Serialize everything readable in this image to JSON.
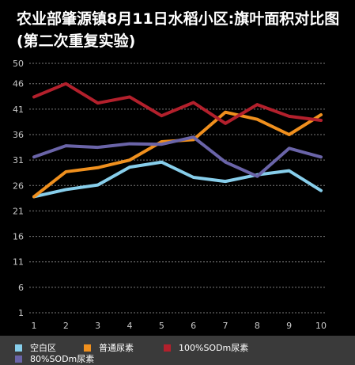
{
  "chart_data": {
    "type": "line",
    "title": "农业部肇源镇8月11日水稻小区:旗叶面积对比图(第二次重复实验)",
    "x": [
      1,
      2,
      3,
      4,
      5,
      6,
      7,
      8,
      9,
      10
    ],
    "x_tick_labels": [
      "1",
      "2",
      "3",
      "4",
      "5",
      "6",
      "7",
      "8",
      "9",
      "10"
    ],
    "y_ticks": [
      1,
      6,
      11,
      16,
      21,
      26,
      31,
      36,
      41,
      46,
      50
    ],
    "y_tick_labels": [
      "1",
      "6",
      "11",
      "16",
      "21",
      "26",
      "31",
      "36",
      "41",
      "46",
      "50"
    ],
    "ylim": [
      1,
      50
    ],
    "grid": true,
    "legend_position": "bottom",
    "series": [
      {
        "name": "空白区",
        "color": "#87ceeb",
        "values": [
          23.8,
          25.2,
          26.1,
          29.6,
          30.6,
          27.6,
          26.8,
          28.1,
          28.9,
          25.0
        ]
      },
      {
        "name": "普通尿素",
        "color": "#f0901e",
        "values": [
          23.8,
          28.7,
          29.5,
          31.0,
          34.6,
          35.0,
          40.4,
          39.0,
          36.0,
          39.9
        ]
      },
      {
        "name": "100%SODm尿素",
        "color": "#b3202c",
        "values": [
          43.4,
          46.0,
          42.2,
          43.4,
          39.7,
          42.3,
          38.2,
          41.9,
          39.6,
          38.8
        ]
      },
      {
        "name": "80%SODm尿素",
        "color": "#6a64a8",
        "values": [
          31.6,
          33.8,
          33.5,
          34.2,
          34.1,
          35.5,
          30.6,
          27.8,
          33.3,
          31.6
        ]
      }
    ]
  }
}
